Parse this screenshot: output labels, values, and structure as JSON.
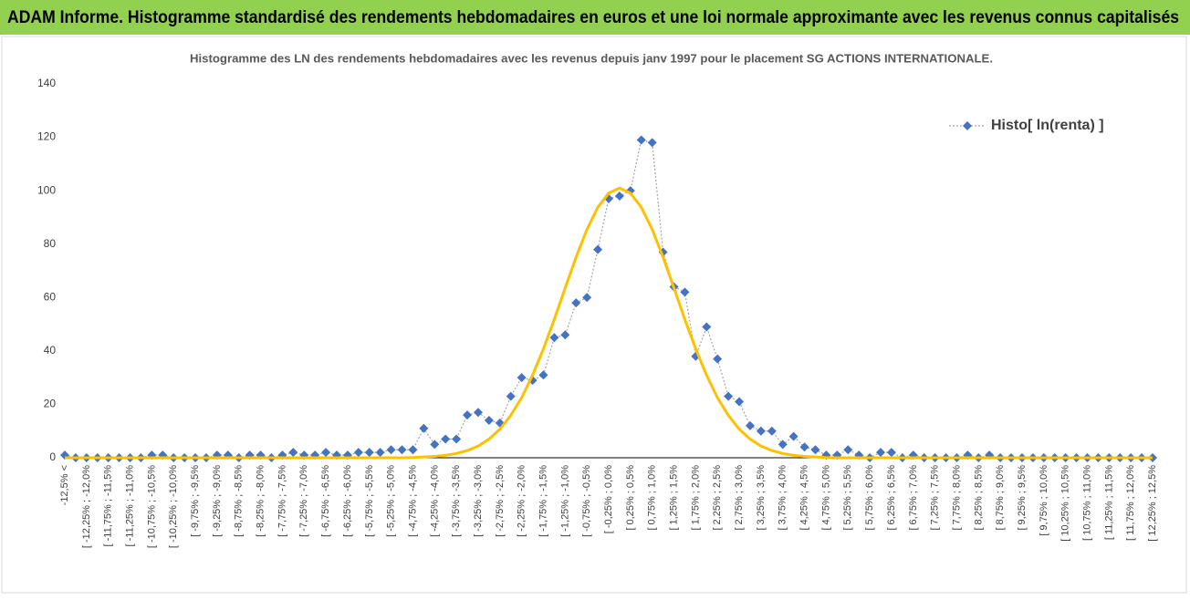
{
  "header": {
    "title": "ADAM Informe. Histogramme standardisé des rendements hebdomadaires en euros et une loi normale approximante avec les revenus connus capitalisés"
  },
  "chart_data": {
    "type": "line",
    "title": "Histogramme des LN des rendements hebdomadaires avec les revenus depuis janv 1997 pour le placement SG ACTIONS INTERNATIONALE.",
    "categories": [
      "-12,5% <",
      null,
      "[ -12,25% ; -12,0%",
      null,
      "[ -11,75% ; -11,5%",
      null,
      "[ -11,25% ; -11,0%",
      null,
      "[ -10,75% ; -10,5%",
      null,
      "[ -10,25% ; -10,0%",
      null,
      "[ -9,75% ; -9,5%",
      null,
      "[ -9,25% ; -9,0%",
      null,
      "[ -8,75% ; -8,5%",
      null,
      "[ -8,25% ; -8,0%",
      null,
      "[ -7,75% ; -7,5%",
      null,
      "[ -7,25% ; -7,0%",
      null,
      "[ -6,75% ; -6,5%",
      null,
      "[ -6,25% ; -6,0%",
      null,
      "[ -5,75% ; -5,5%",
      null,
      "[ -5,25% ; -5,0%",
      null,
      "[ -4,75% ; -4,5%",
      null,
      "[ -4,25% ; -4,0%",
      null,
      "[ -3,75% ; -3,5%",
      null,
      "[ -3,25% ; -3,0%",
      null,
      "[ -2,75% ; -2,5%",
      null,
      "[ -2,25% ; -2,0%",
      null,
      "[ -1,75% ; -1,5%",
      null,
      "[ -1,25% ; -1,0%",
      null,
      "[ -0,75% ; -0,5%",
      null,
      "[ -0,25% ; 0,0%",
      null,
      "[ 0,25% ; 0,5%",
      null,
      "[ 0,75% ; 1,0%",
      null,
      "[ 1,25% ; 1,5%",
      null,
      "[ 1,75% ; 2,0%",
      null,
      "[ 2,25% ; 2,5%",
      null,
      "[ 2,75% ; 3,0%",
      null,
      "[ 3,25% ; 3,5%",
      null,
      "[ 3,75% ; 4,0%",
      null,
      "[ 4,25% ; 4,5%",
      null,
      "[ 4,75% ; 5,0%",
      null,
      "[ 5,25% ; 5,5%",
      null,
      "[ 5,75% ; 6,0%",
      null,
      "[ 6,25% ; 6,5%",
      null,
      "[ 6,75% ; 7,0%",
      null,
      "[ 7,25% ; 7,5%",
      null,
      "[ 7,75% ; 8,0%",
      null,
      "[ 8,25% ; 8,5%",
      null,
      "[ 8,75% ; 9,0%",
      null,
      "[ 9,25% ; 9,5%",
      null,
      "[ 9,75% ; 10,0%",
      null,
      "[ 10,25% ; 10,5%",
      null,
      "[ 10,75% ; 11,0%",
      null,
      "[ 11,25% ; 11,5%",
      null,
      "[ 11,75% ; 12,0%",
      null,
      "[ 12,25% ; 12,5%"
    ],
    "series": [
      {
        "name": "Histo[ ln(renta) ]",
        "color": "#4472c4",
        "line_color": "#a6a6a6",
        "marker": "diamond",
        "values": [
          1,
          0,
          0,
          0,
          0,
          0,
          0,
          0,
          1,
          1,
          0,
          0,
          0,
          0,
          1,
          1,
          0,
          1,
          1,
          0,
          1,
          2,
          1,
          1,
          2,
          1,
          1,
          2,
          2,
          2,
          3,
          3,
          3,
          11,
          5,
          7,
          7,
          16,
          17,
          14,
          13,
          23,
          30,
          29,
          31,
          45,
          46,
          58,
          60,
          78,
          97,
          98,
          100,
          119,
          118,
          77,
          64,
          62,
          38,
          49,
          37,
          23,
          21,
          12,
          10,
          10,
          5,
          8,
          4,
          3,
          1,
          1,
          3,
          1,
          0,
          2,
          2,
          0,
          1,
          0,
          0,
          0,
          0,
          1,
          0,
          1,
          0,
          0,
          0,
          0,
          0,
          0,
          0,
          0,
          0,
          0,
          0,
          0,
          0,
          0,
          0
        ]
      },
      {
        "color": "#ffc000",
        "marker": "none",
        "values": [
          0,
          0,
          0,
          0,
          0,
          0,
          0,
          0,
          0,
          0,
          0,
          0,
          0,
          0,
          0,
          0,
          0,
          0,
          0,
          0,
          0,
          0,
          0,
          0,
          0,
          0,
          0,
          0,
          0,
          0,
          0,
          0,
          0.1,
          0.3,
          0.5,
          0.9,
          1.6,
          2.7,
          4.4,
          7.0,
          10.7,
          15.9,
          22.5,
          30.9,
          40.8,
          51.8,
          63.6,
          75.1,
          85.5,
          93.8,
          99.1,
          101,
          99.1,
          93.8,
          85.5,
          75.1,
          63.6,
          51.8,
          40.8,
          30.9,
          22.5,
          15.9,
          10.7,
          7.0,
          4.4,
          2.7,
          1.6,
          0.9,
          0.5,
          0.3,
          0.1,
          0,
          0,
          0,
          0,
          0,
          0,
          0,
          0,
          0,
          0,
          0,
          0,
          0,
          0,
          0,
          0,
          0,
          0,
          0,
          0,
          0,
          0,
          0,
          0,
          0,
          0,
          0,
          0,
          0,
          0
        ]
      }
    ],
    "ylim": [
      0,
      140
    ],
    "yticks": [
      0,
      20,
      40,
      60,
      80,
      100,
      120,
      140
    ],
    "grid": false,
    "legend": "top-right"
  }
}
